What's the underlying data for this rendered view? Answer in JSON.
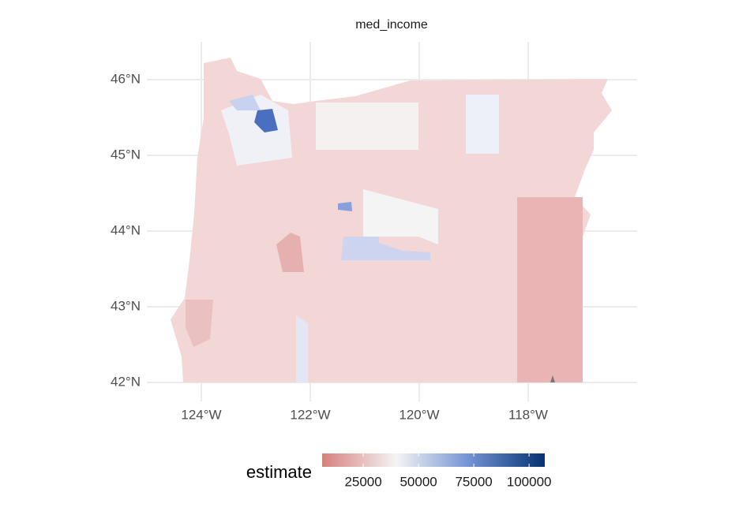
{
  "chart_data": {
    "type": "choropleth",
    "title": "med_income",
    "xlim": [
      -125,
      -116
    ],
    "ylim": [
      41.75,
      46.5
    ],
    "xticks": [
      {
        "value": -124,
        "label": "124°W"
      },
      {
        "value": -122,
        "label": "122°W"
      },
      {
        "value": -120,
        "label": "120°W"
      },
      {
        "value": -118,
        "label": "118°W"
      }
    ],
    "yticks": [
      {
        "value": 42,
        "label": "42°N"
      },
      {
        "value": 43,
        "label": "43°N"
      },
      {
        "value": 44,
        "label": "44°N"
      },
      {
        "value": 45,
        "label": "45°N"
      },
      {
        "value": 46,
        "label": "46°N"
      }
    ],
    "grid": true,
    "legend": {
      "title": "estimate",
      "position": "bottom",
      "lim": [
        6400,
        107100
      ],
      "ticks": [
        25000,
        50000,
        75000,
        100000
      ],
      "colors": [
        "#d6807e",
        "#f4f4f4",
        "#7090d2",
        "#053272"
      ]
    }
  }
}
